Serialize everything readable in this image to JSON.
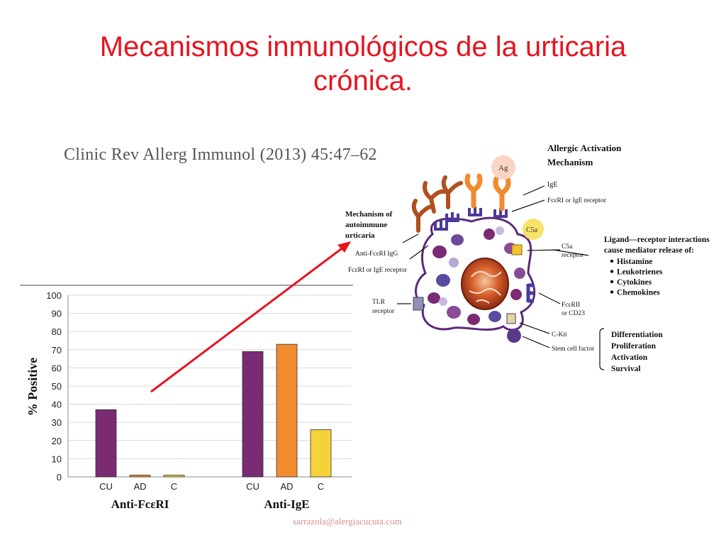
{
  "slide": {
    "title_line1": "Mecanismos inmunológicos de la urticaria",
    "title_line2": "crónica.",
    "citation": "Clinic Rev Allerg Immunol (2013) 45:47–62",
    "footer": "sarrazola@alergiacucuta.com",
    "accent_color": "#e8141f"
  },
  "chart_data": {
    "type": "bar",
    "ylabel": "% Positive",
    "ylim": [
      0,
      100
    ],
    "yticks": [
      0,
      10,
      20,
      30,
      40,
      50,
      60,
      70,
      80,
      90,
      100
    ],
    "groups": [
      {
        "label": "Anti-FcεRI",
        "bars": [
          {
            "category": "CU",
            "value": 37,
            "color": "#7b2a74"
          },
          {
            "category": "AD",
            "value": 1,
            "color": "#f28a2e"
          },
          {
            "category": "C",
            "value": 1,
            "color": "#f5d23a"
          }
        ]
      },
      {
        "label": "Anti-IgE",
        "bars": [
          {
            "category": "CU",
            "value": 69,
            "color": "#7b2a74"
          },
          {
            "category": "AD",
            "value": 73,
            "color": "#f28a2e"
          },
          {
            "category": "C",
            "value": 26,
            "color": "#f5d23a"
          }
        ]
      }
    ]
  },
  "diagram": {
    "allergic_title_1": "Allergic Activation",
    "allergic_title_2": "Mechanism",
    "ag": "Ag",
    "ige": "IgE",
    "fceri_ige_receptor": "FcεRI or IgE receptor",
    "c5a": "C5a",
    "c5a_receptor_1": "C5a",
    "c5a_receptor_2": "receptor",
    "ligand_1": "Ligand—receptor interactions",
    "ligand_2": "cause mediator release of:",
    "mediators": [
      "Histamine",
      "Leukotrienes",
      "Cytokines",
      "Chemokines"
    ],
    "autoimmune_1": "Mechanism of",
    "autoimmune_2": "autoimmune",
    "autoimmune_3": "urticaria",
    "anti_igg": "Anti-FcεRI IgG",
    "fceri_left": "FcεRI or IgE receptor",
    "tlr_1": "TLR",
    "tlr_2": "receptor",
    "fceri2_1": "FcεRII",
    "fceri2_2": "or CD23",
    "ckit": "C-Kit",
    "scf": "Stem cell factor",
    "outcomes": [
      "Differentiation",
      "Proliferation",
      "Activation",
      "Survival"
    ]
  }
}
